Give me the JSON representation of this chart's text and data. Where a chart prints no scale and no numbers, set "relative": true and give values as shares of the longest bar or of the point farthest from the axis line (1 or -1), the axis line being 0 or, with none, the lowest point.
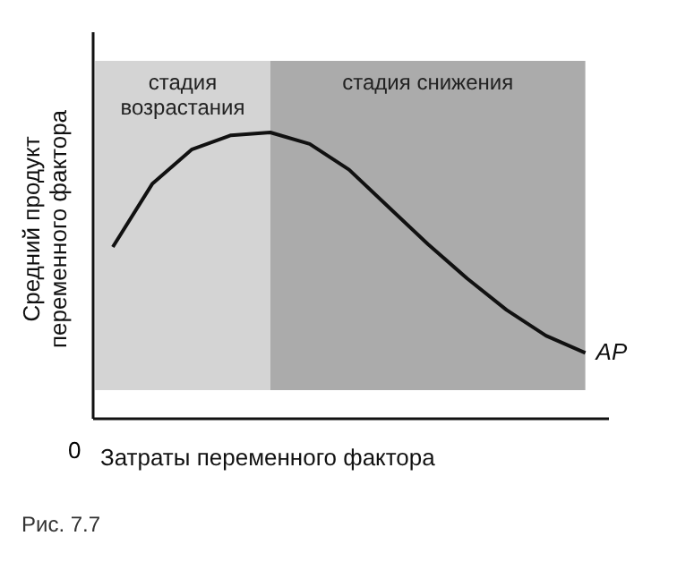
{
  "chart_data": {
    "type": "line",
    "relative": true,
    "ylabel": "Средний продукт переменного фактора",
    "xlabel": "Затраты переменного фактора",
    "categories": [
      null,
      null,
      null,
      null,
      null,
      null,
      null,
      null,
      null,
      null,
      null,
      null,
      null
    ],
    "marker": "none",
    "line_style": "solid",
    "series": [
      {
        "name": "AP",
        "color": "#111111",
        "values": [
          0.6,
          0.82,
          0.94,
          0.99,
          1,
          0.96,
          0.87,
          0.74,
          0.61,
          0.49,
          0.38,
          0.29,
          0.23
        ]
      }
    ],
    "annotations": [
      "стадия возрастания",
      "стадия снижения",
      "0",
      "Рис. 7.7"
    ]
  }
}
